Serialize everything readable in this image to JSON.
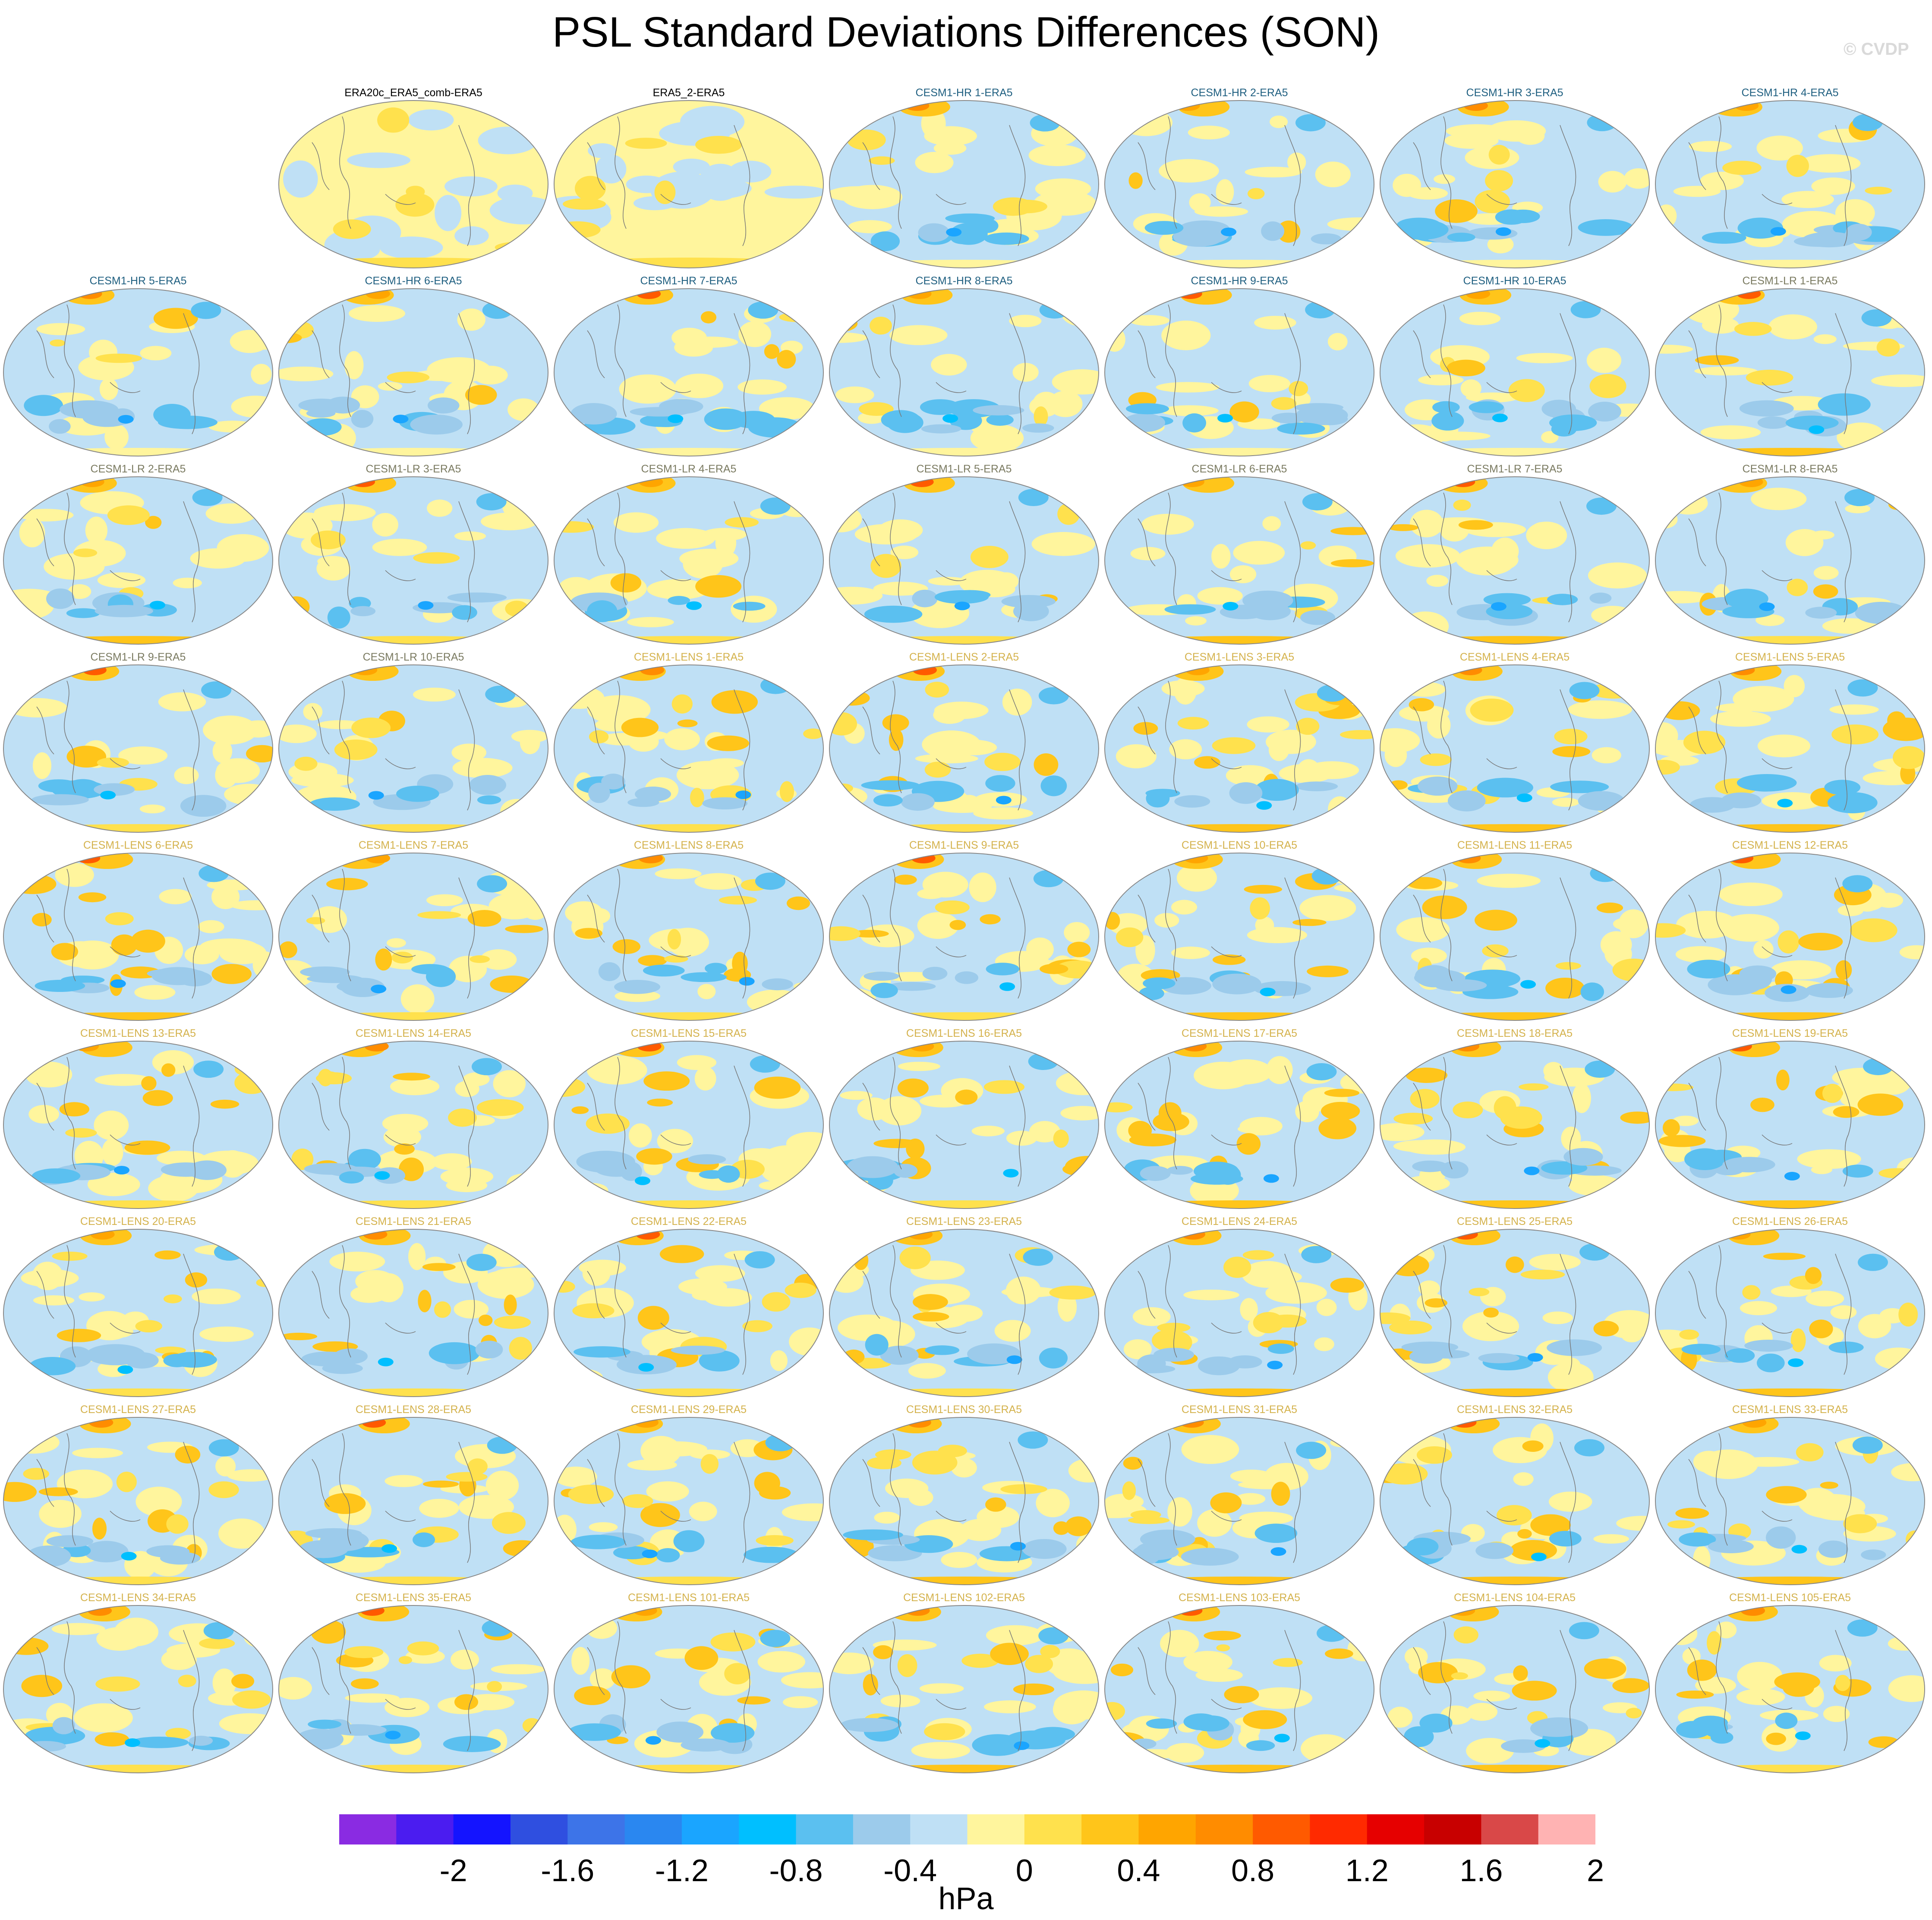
{
  "title": "PSL Standard Deviations Differences (SON)",
  "copyright": "© CVDP",
  "colorbar": {
    "unit": "hPa",
    "tick_labels": [
      "-2",
      "-1.6",
      "-1.2",
      "-0.8",
      "-0.4",
      "0",
      "0.4",
      "0.8",
      "1.2",
      "1.6",
      "2"
    ],
    "colors": [
      "#8a2be2",
      "#4b1cf0",
      "#1414ff",
      "#2f4fe0",
      "#3d74e8",
      "#2a87f0",
      "#1aa5ff",
      "#00bfff",
      "#5bc0f0",
      "#9ccbeb",
      "#bfe0f5",
      "#fff59d",
      "#ffe14d",
      "#ffc51a",
      "#ffa500",
      "#ff8c00",
      "#ff5a00",
      "#ff2a00",
      "#e60000",
      "#c80000",
      "#d94848",
      "#ffb3b3"
    ]
  },
  "label_colors": {
    "obs": "#000000",
    "hr": "#1f5f80",
    "lr": "#7a7a60",
    "lens": "#d4b24c"
  },
  "panels": [
    {
      "label": "ERA20c_ERA5_comb-ERA5",
      "group": "obs",
      "pattern": "obs"
    },
    {
      "label": "ERA5_2-ERA5",
      "group": "obs",
      "pattern": "obs"
    },
    {
      "label": "CESM1-HR 1-ERA5",
      "group": "hr",
      "pattern": "hr"
    },
    {
      "label": "CESM1-HR 2-ERA5",
      "group": "hr",
      "pattern": "hr"
    },
    {
      "label": "CESM1-HR 3-ERA5",
      "group": "hr",
      "pattern": "hr"
    },
    {
      "label": "CESM1-HR 4-ERA5",
      "group": "hr",
      "pattern": "hr"
    },
    {
      "label": "CESM1-HR 5-ERA5",
      "group": "hr",
      "pattern": "hr"
    },
    {
      "label": "CESM1-HR 6-ERA5",
      "group": "hr",
      "pattern": "hr"
    },
    {
      "label": "CESM1-HR 7-ERA5",
      "group": "hr",
      "pattern": "hr"
    },
    {
      "label": "CESM1-HR 8-ERA5",
      "group": "hr",
      "pattern": "hr"
    },
    {
      "label": "CESM1-HR 9-ERA5",
      "group": "hr",
      "pattern": "hr"
    },
    {
      "label": "CESM1-HR 10-ERA5",
      "group": "hr",
      "pattern": "hr"
    },
    {
      "label": "CESM1-LR 1-ERA5",
      "group": "lr",
      "pattern": "lr"
    },
    {
      "label": "CESM1-LR 2-ERA5",
      "group": "lr",
      "pattern": "lr"
    },
    {
      "label": "CESM1-LR 3-ERA5",
      "group": "lr",
      "pattern": "lr"
    },
    {
      "label": "CESM1-LR 4-ERA5",
      "group": "lr",
      "pattern": "lr"
    },
    {
      "label": "CESM1-LR 5-ERA5",
      "group": "lr",
      "pattern": "lr"
    },
    {
      "label": "CESM1-LR 6-ERA5",
      "group": "lr",
      "pattern": "lr"
    },
    {
      "label": "CESM1-LR 7-ERA5",
      "group": "lr",
      "pattern": "lr"
    },
    {
      "label": "CESM1-LR 8-ERA5",
      "group": "lr",
      "pattern": "lr"
    },
    {
      "label": "CESM1-LR 9-ERA5",
      "group": "lr",
      "pattern": "lr"
    },
    {
      "label": "CESM1-LR 10-ERA5",
      "group": "lr",
      "pattern": "lr"
    },
    {
      "label": "CESM1-LENS 1-ERA5",
      "group": "lens",
      "pattern": "lens"
    },
    {
      "label": "CESM1-LENS 2-ERA5",
      "group": "lens",
      "pattern": "lens"
    },
    {
      "label": "CESM1-LENS 3-ERA5",
      "group": "lens",
      "pattern": "lens"
    },
    {
      "label": "CESM1-LENS 4-ERA5",
      "group": "lens",
      "pattern": "lens"
    },
    {
      "label": "CESM1-LENS 5-ERA5",
      "group": "lens",
      "pattern": "lens"
    },
    {
      "label": "CESM1-LENS 6-ERA5",
      "group": "lens",
      "pattern": "lens"
    },
    {
      "label": "CESM1-LENS 7-ERA5",
      "group": "lens",
      "pattern": "lens"
    },
    {
      "label": "CESM1-LENS 8-ERA5",
      "group": "lens",
      "pattern": "lens"
    },
    {
      "label": "CESM1-LENS 9-ERA5",
      "group": "lens",
      "pattern": "lens"
    },
    {
      "label": "CESM1-LENS 10-ERA5",
      "group": "lens",
      "pattern": "lens"
    },
    {
      "label": "CESM1-LENS 11-ERA5",
      "group": "lens",
      "pattern": "lens"
    },
    {
      "label": "CESM1-LENS 12-ERA5",
      "group": "lens",
      "pattern": "lens"
    },
    {
      "label": "CESM1-LENS 13-ERA5",
      "group": "lens",
      "pattern": "lens"
    },
    {
      "label": "CESM1-LENS 14-ERA5",
      "group": "lens",
      "pattern": "lens"
    },
    {
      "label": "CESM1-LENS 15-ERA5",
      "group": "lens",
      "pattern": "lens"
    },
    {
      "label": "CESM1-LENS 16-ERA5",
      "group": "lens",
      "pattern": "lens"
    },
    {
      "label": "CESM1-LENS 17-ERA5",
      "group": "lens",
      "pattern": "lens"
    },
    {
      "label": "CESM1-LENS 18-ERA5",
      "group": "lens",
      "pattern": "lens"
    },
    {
      "label": "CESM1-LENS 19-ERA5",
      "group": "lens",
      "pattern": "lens"
    },
    {
      "label": "CESM1-LENS 20-ERA5",
      "group": "lens",
      "pattern": "lens"
    },
    {
      "label": "CESM1-LENS 21-ERA5",
      "group": "lens",
      "pattern": "lens"
    },
    {
      "label": "CESM1-LENS 22-ERA5",
      "group": "lens",
      "pattern": "lens"
    },
    {
      "label": "CESM1-LENS 23-ERA5",
      "group": "lens",
      "pattern": "lens"
    },
    {
      "label": "CESM1-LENS 24-ERA5",
      "group": "lens",
      "pattern": "lens"
    },
    {
      "label": "CESM1-LENS 25-ERA5",
      "group": "lens",
      "pattern": "lens"
    },
    {
      "label": "CESM1-LENS 26-ERA5",
      "group": "lens",
      "pattern": "lens"
    },
    {
      "label": "CESM1-LENS 27-ERA5",
      "group": "lens",
      "pattern": "lens"
    },
    {
      "label": "CESM1-LENS 28-ERA5",
      "group": "lens",
      "pattern": "lens"
    },
    {
      "label": "CESM1-LENS 29-ERA5",
      "group": "lens",
      "pattern": "lens"
    },
    {
      "label": "CESM1-LENS 30-ERA5",
      "group": "lens",
      "pattern": "lens"
    },
    {
      "label": "CESM1-LENS 31-ERA5",
      "group": "lens",
      "pattern": "lens"
    },
    {
      "label": "CESM1-LENS 32-ERA5",
      "group": "lens",
      "pattern": "lens"
    },
    {
      "label": "CESM1-LENS 33-ERA5",
      "group": "lens",
      "pattern": "lens"
    },
    {
      "label": "CESM1-LENS 34-ERA5",
      "group": "lens",
      "pattern": "lens"
    },
    {
      "label": "CESM1-LENS 35-ERA5",
      "group": "lens",
      "pattern": "lens"
    },
    {
      "label": "CESM1-LENS 101-ERA5",
      "group": "lens",
      "pattern": "lens"
    },
    {
      "label": "CESM1-LENS 102-ERA5",
      "group": "lens",
      "pattern": "lens"
    },
    {
      "label": "CESM1-LENS 103-ERA5",
      "group": "lens",
      "pattern": "lens"
    },
    {
      "label": "CESM1-LENS 104-ERA5",
      "group": "lens",
      "pattern": "lens"
    },
    {
      "label": "CESM1-LENS 105-ERA5",
      "group": "lens",
      "pattern": "lens"
    }
  ]
}
